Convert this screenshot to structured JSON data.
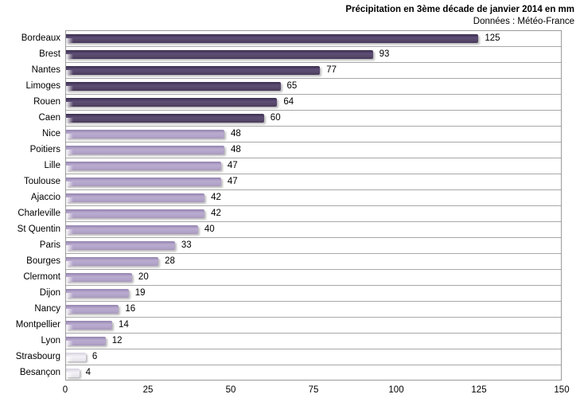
{
  "chart_data": {
    "type": "bar",
    "orientation": "horizontal",
    "title": "Précipitation en 3ème décade de janvier 2014 en mm",
    "subtitle": "Données : Météo-France",
    "xlabel": "",
    "ylabel": "",
    "xlim": [
      0,
      150
    ],
    "x_ticks": [
      0,
      25,
      50,
      75,
      100,
      125,
      150
    ],
    "grid": "horizontal category separator lines only, no vertical gridlines",
    "legend": "none",
    "value_labels_position": "outside end of bar",
    "colors": {
      "dark_purple": "#3F3151",
      "light_purple": "#B3A2C7",
      "pale_lavender": "#E9E6F0",
      "gridline_gray": "#A8A8A8"
    },
    "bars": [
      {
        "label": "Bordeaux",
        "value": 125,
        "color_group": "dark"
      },
      {
        "label": "Brest",
        "value": 93,
        "color_group": "dark"
      },
      {
        "label": "Nantes",
        "value": 77,
        "color_group": "dark"
      },
      {
        "label": "Limoges",
        "value": 65,
        "color_group": "dark"
      },
      {
        "label": "Rouen",
        "value": 64,
        "color_group": "dark"
      },
      {
        "label": "Caen",
        "value": 60,
        "color_group": "dark"
      },
      {
        "label": "Nice",
        "value": 48,
        "color_group": "light"
      },
      {
        "label": "Poitiers",
        "value": 48,
        "color_group": "light"
      },
      {
        "label": "Lille",
        "value": 47,
        "color_group": "light"
      },
      {
        "label": "Toulouse",
        "value": 47,
        "color_group": "light"
      },
      {
        "label": "Ajaccio",
        "value": 42,
        "color_group": "light"
      },
      {
        "label": "Charleville",
        "value": 42,
        "color_group": "light"
      },
      {
        "label": "St Quentin",
        "value": 40,
        "color_group": "light"
      },
      {
        "label": "Paris",
        "value": 33,
        "color_group": "light"
      },
      {
        "label": "Bourges",
        "value": 28,
        "color_group": "light"
      },
      {
        "label": "Clermont",
        "value": 20,
        "color_group": "light"
      },
      {
        "label": "Dijon",
        "value": 19,
        "color_group": "light"
      },
      {
        "label": "Nancy",
        "value": 16,
        "color_group": "light"
      },
      {
        "label": "Montpellier",
        "value": 14,
        "color_group": "light"
      },
      {
        "label": "Lyon",
        "value": 12,
        "color_group": "light"
      },
      {
        "label": "Strasbourg",
        "value": 6,
        "color_group": "pale"
      },
      {
        "label": "Besançon",
        "value": 4,
        "color_group": "pale"
      }
    ]
  }
}
